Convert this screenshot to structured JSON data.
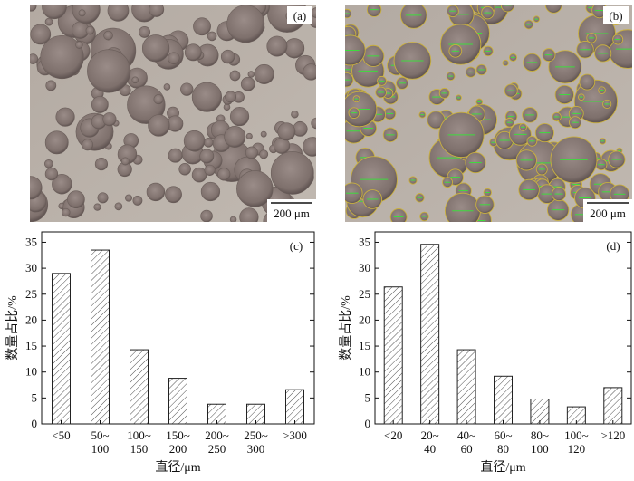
{
  "images": [
    {
      "label": "(a)",
      "scale_bar": "200 μm"
    },
    {
      "label": "(b)",
      "scale_bar": "200 μm"
    }
  ],
  "chart_data": [
    {
      "type": "bar",
      "annotation": "(c)",
      "xlabel": "直径/μm",
      "ylabel": "数量占比/%",
      "categories": [
        "<50",
        "50~\n100",
        "100~\n150",
        "150~\n200",
        "200~\n250",
        "250~\n300",
        ">300"
      ],
      "values": [
        29,
        33.5,
        14.3,
        8.8,
        3.8,
        3.8,
        6.6
      ],
      "color": "#222222",
      "ylim": [
        0,
        37
      ],
      "yticks": [
        0,
        5,
        10,
        15,
        20,
        25,
        30,
        35
      ]
    },
    {
      "type": "bar",
      "annotation": "(d)",
      "xlabel": "直径/μm",
      "ylabel": "数量占比/%",
      "categories": [
        "<20",
        "20~\n40",
        "40~\n60",
        "60~\n80",
        "80~\n100",
        "100~\n120",
        ">120"
      ],
      "values": [
        26.4,
        34.6,
        14.3,
        9.2,
        4.8,
        3.3,
        7.0
      ],
      "color": "#222222",
      "ylim": [
        0,
        37
      ],
      "yticks": [
        0,
        5,
        10,
        15,
        20,
        25,
        30,
        35
      ]
    }
  ]
}
